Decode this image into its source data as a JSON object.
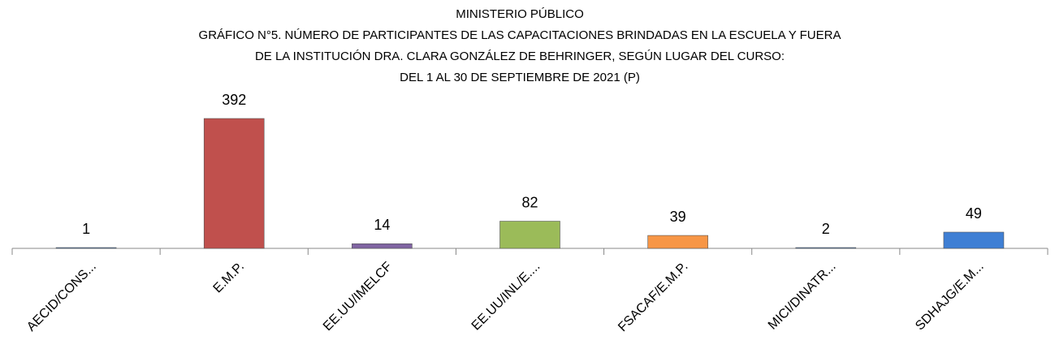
{
  "chart_data": {
    "type": "bar",
    "title": [
      "MINISTERIO PÚBLICO",
      "GRÁFICO N°5.  NÚMERO DE PARTICIPANTES DE LAS CAPACITACIONES BRINDADAS EN LA ESCUELA Y FUERA",
      "DE LA INSTITUCIÓN  DRA. CLARA GONZÁLEZ DE BEHRINGER, SEGÚN LUGAR DEL CURSO:",
      "DEL 1 AL 30 DE SEPTIEMBRE DE 2021 (P)"
    ],
    "categories": [
      "AECID/CONS...",
      "E.M.P.",
      "EE.UU/IMELCF",
      "EE.UU/INL/E....",
      "FSACAF/E.M.P.",
      "MICI/DINATR...",
      "SDHAJG/E.M..."
    ],
    "values": [
      1,
      392,
      14,
      82,
      39,
      2,
      49
    ],
    "colors": [
      "#4f81bd",
      "#c0504d",
      "#8064a2",
      "#9bbb59",
      "#f79646",
      "#4f81bd",
      "#3f7fd4"
    ]
  }
}
